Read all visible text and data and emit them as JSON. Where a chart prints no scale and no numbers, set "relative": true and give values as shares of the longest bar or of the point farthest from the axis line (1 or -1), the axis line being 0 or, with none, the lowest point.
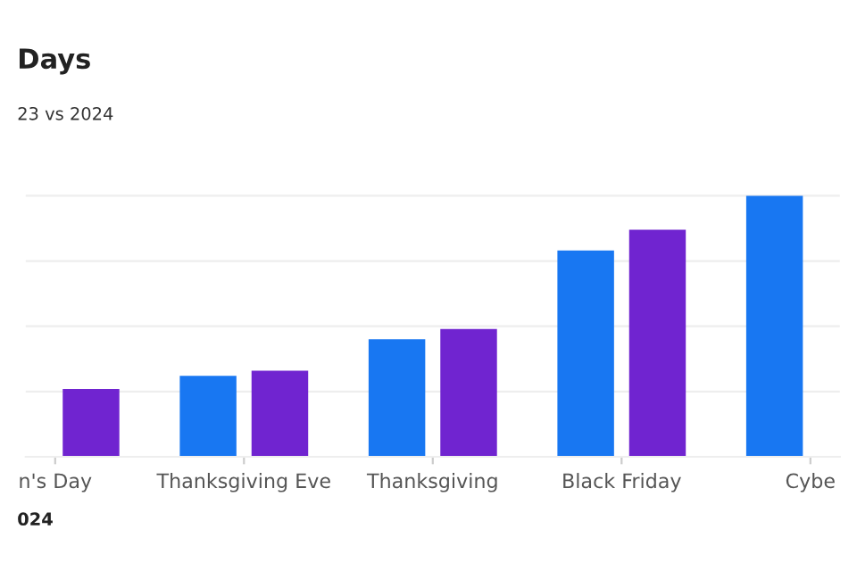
{
  "chart_data": {
    "type": "bar",
    "title": "Days",
    "subtitle": "23 vs 2024",
    "relative": true,
    "grid": "y",
    "categories": [
      "n's Day",
      "Thanksgiving Eve",
      "Thanksgiving",
      "Black Friday",
      "Cybe"
    ],
    "series": [
      {
        "color": "#1877f2",
        "values": [
          null,
          0.31,
          0.45,
          0.79,
          1
        ]
      },
      {
        "color": "#7024d0",
        "values": [
          0.26,
          0.33,
          0.49,
          0.87,
          null
        ]
      }
    ],
    "annotations": [
      "024"
    ]
  }
}
